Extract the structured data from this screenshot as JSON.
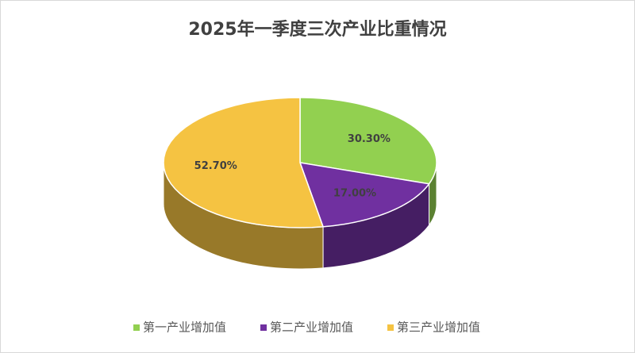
{
  "chart_data": {
    "type": "pie3d",
    "title": "2025年一季度三次产业比重情况",
    "categories": [
      "第一产业增加值",
      "第二产业增加值",
      "第三产业增加值"
    ],
    "values": [
      30.3,
      17,
      52.7
    ],
    "value_labels": [
      "30.30%",
      "17.00%",
      "52.70%"
    ],
    "colors": [
      "#92d050",
      "#7030a0",
      "#f5c342"
    ],
    "legend": "bottom"
  }
}
